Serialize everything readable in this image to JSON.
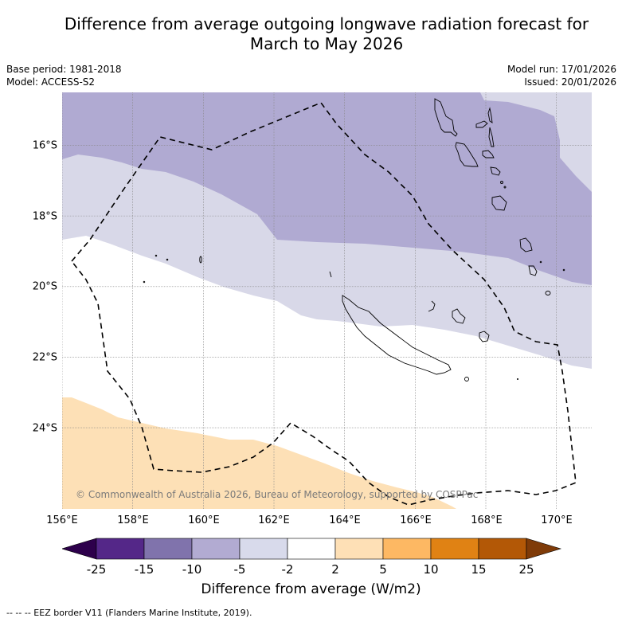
{
  "title": {
    "line1": "Difference from average outgoing longwave radiation forecast for",
    "line2": "March to May 2026"
  },
  "meta": {
    "base_period": "Base period: 1981-2018",
    "model": "Model: ACCESS-S2",
    "model_run": "Model run: 17/01/2026",
    "issued": "Issued: 20/01/2026"
  },
  "map": {
    "lon_range": [
      156.0,
      171.0
    ],
    "lat_range": [
      -14.5,
      -26.3
    ],
    "lat_ticks": [
      "16°S",
      "18°S",
      "20°S",
      "22°S",
      "24°S"
    ],
    "lat_tick_values": [
      -16,
      -18,
      -20,
      -22,
      -24
    ],
    "lon_ticks": [
      "156°E",
      "158°E",
      "160°E",
      "162°E",
      "164°E",
      "166°E",
      "168°E",
      "170°E"
    ],
    "lon_tick_values": [
      156,
      158,
      160,
      162,
      164,
      166,
      168,
      170
    ],
    "copyright": "© Commonwealth of Australia 2026, Bureau of Meteorology, supported by COSPPac",
    "regions": [
      {
        "category": "-10 to -5",
        "color": "#b0aad2"
      },
      {
        "category": "-5 to -2",
        "color": "#d8d8e8"
      },
      {
        "category": "-2 to 2",
        "color": "#ffffff"
      },
      {
        "category": "2 to 5",
        "color": "#fde0b6"
      }
    ],
    "eez_border_label": "EEZ border",
    "features": [
      "Vanuatu",
      "New Caledonia",
      "Loyalty Islands",
      "Chesterfield Islands"
    ]
  },
  "colorbar": {
    "label": "Difference from average (W/m2)",
    "ticks": [
      "-25",
      "-15",
      "-10",
      "-5",
      "-2",
      "2",
      "5",
      "10",
      "15",
      "25"
    ],
    "under_color": "#2d004b",
    "over_color": "#7f3b08",
    "colors": [
      "#542788",
      "#8073ac",
      "#b2abd2",
      "#d8daeb",
      "#ffffff",
      "#fee0b6",
      "#fdb863",
      "#e08214",
      "#b35806"
    ]
  },
  "footer": "--  --  -- EEZ border V11 (Flanders Marine Institute, 2019)."
}
